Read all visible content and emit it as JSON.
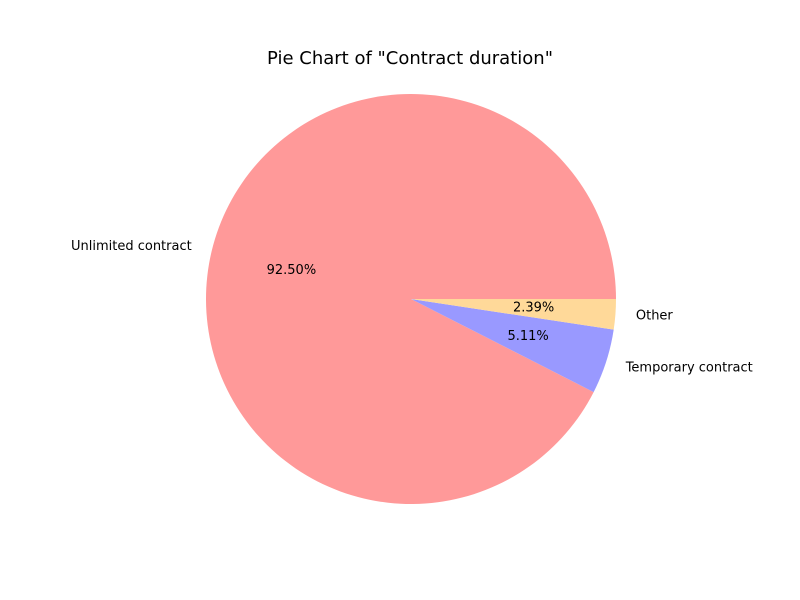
{
  "chart_data": {
    "type": "pie",
    "title": "Pie Chart of \"Contract duration\"",
    "start_angle_deg": 0,
    "direction": "counterclockwise",
    "slices": [
      {
        "label": "Unlimited contract",
        "value": 92.5,
        "pct_label": "92.50%",
        "color": "#ff9999"
      },
      {
        "label": "Temporary contract",
        "value": 5.11,
        "pct_label": "5.11%",
        "color": "#9999ff"
      },
      {
        "label": "Other",
        "value": 2.39,
        "pct_label": "2.39%",
        "color": "#ffd999"
      }
    ]
  }
}
